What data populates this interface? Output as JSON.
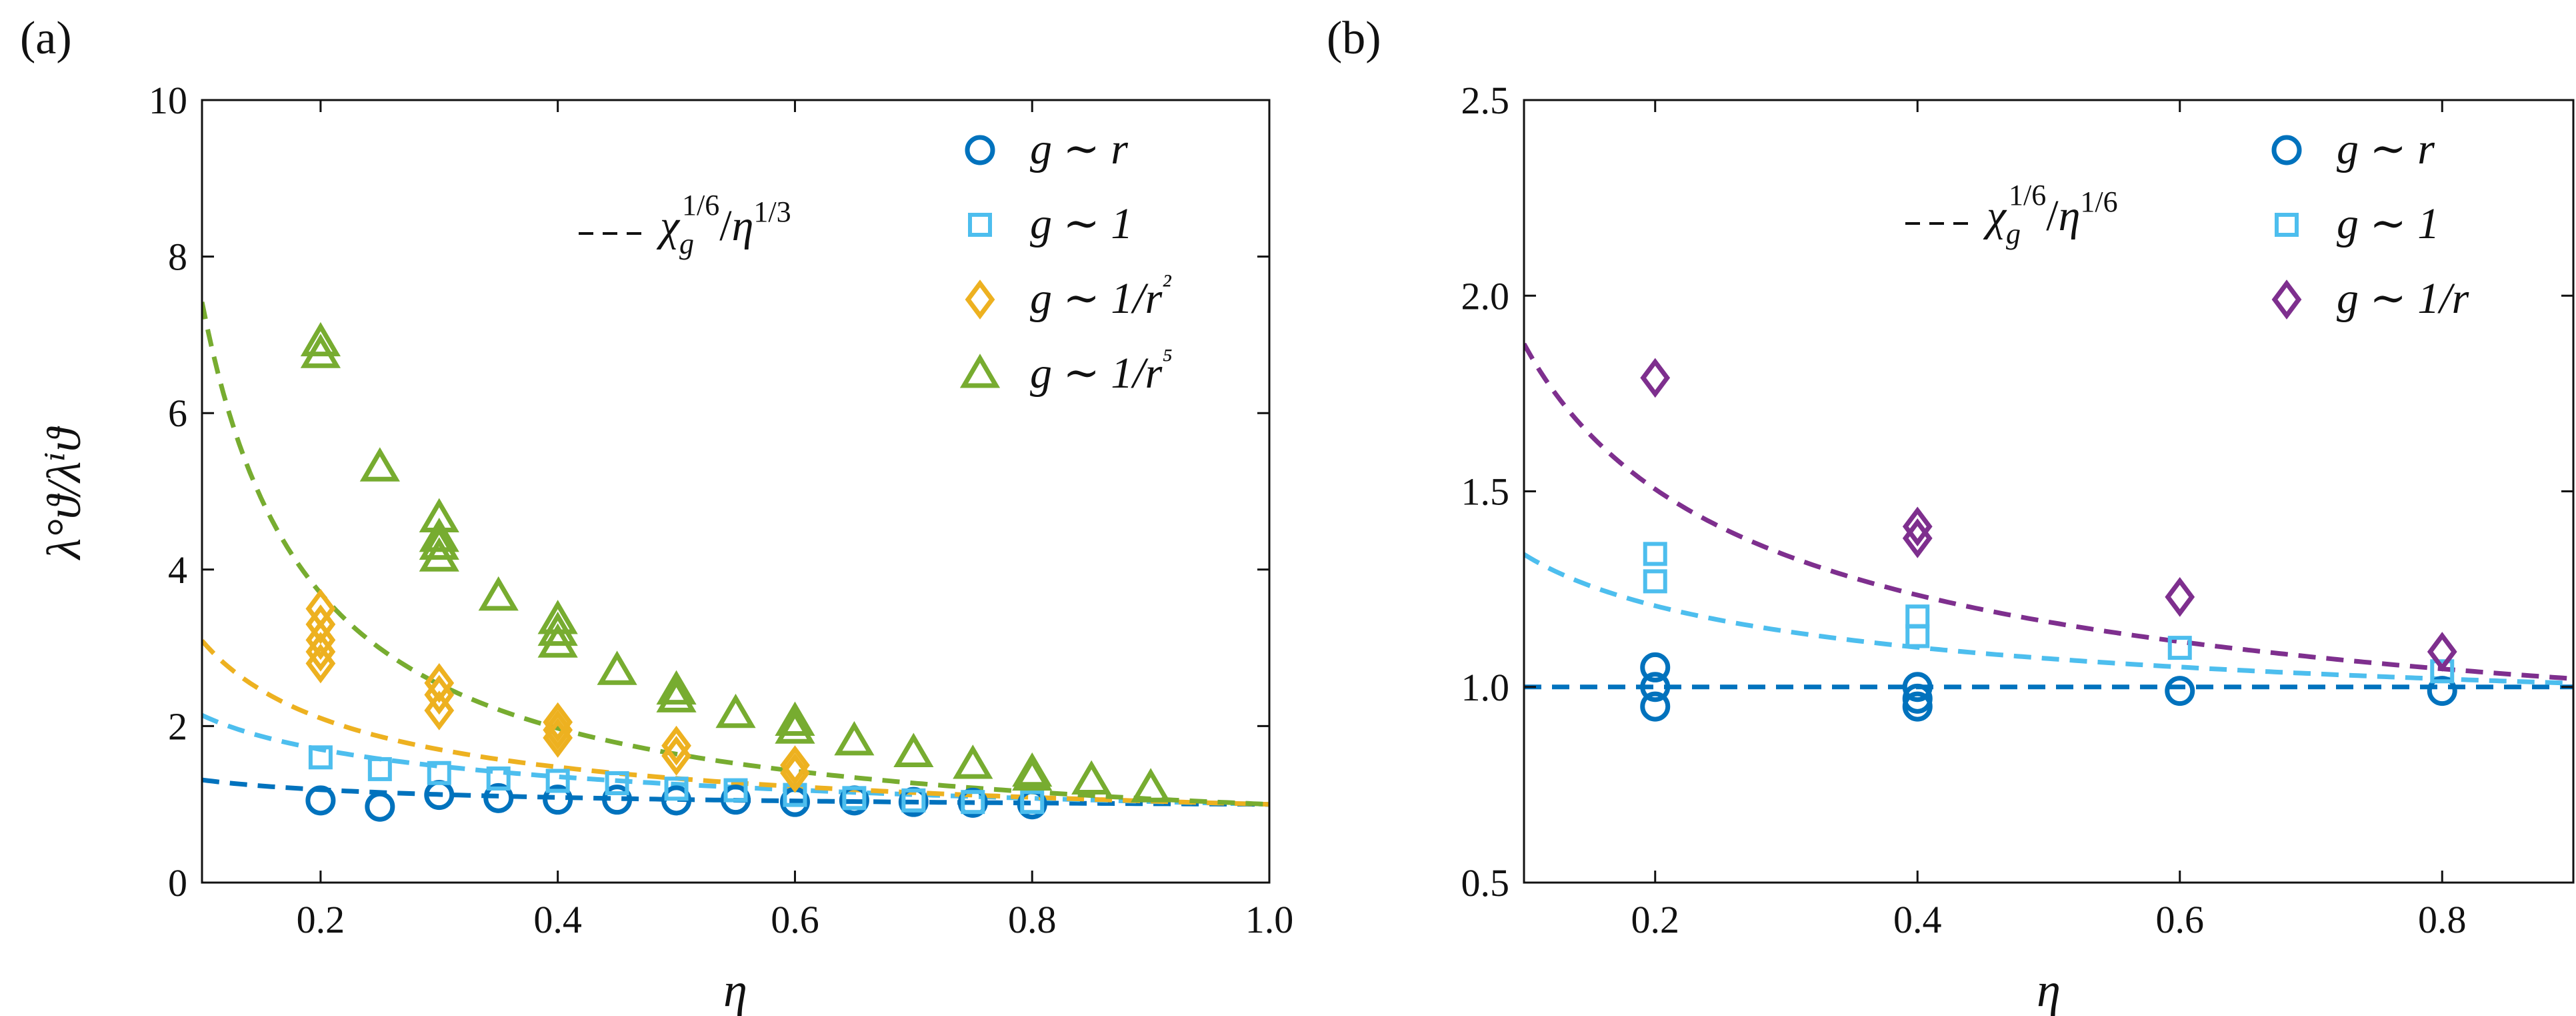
{
  "colors": {
    "g_r": "#0072bd",
    "g_1": "#4dbeee",
    "g_1r2": "#edb120",
    "g_1r5": "#77ac30",
    "g_1r": "#7e2f8e",
    "axis": "#111111"
  },
  "chart_data": [
    {
      "type": "scatter",
      "panel_label": "(a)",
      "xlabel": "η",
      "ylabel": "λ°ϑ/λⁱϑ",
      "xlim": [
        0.1,
        1.0
      ],
      "ylim": [
        0,
        10
      ],
      "xticks": [
        0.2,
        0.4,
        0.6,
        0.8,
        1.0
      ],
      "xtick_labels": [
        "0.2",
        "0.4",
        "0.6",
        "0.8",
        "1.0"
      ],
      "yticks": [
        0,
        2,
        4,
        6,
        8,
        10
      ],
      "ytick_labels": [
        "0",
        "2",
        "4",
        "6",
        "8",
        "10"
      ],
      "grid": false,
      "legend_position": "top-right",
      "fit_legend": "χ_g^{1/6}/η^{1/3}",
      "series": [
        {
          "name": "g ∼ r",
          "marker": "circle",
          "color_key": "g_r",
          "fit_exponent": 0,
          "points": [
            [
              0.2,
              1.05
            ],
            [
              0.25,
              0.97
            ],
            [
              0.3,
              1.12
            ],
            [
              0.35,
              1.08
            ],
            [
              0.4,
              1.06
            ],
            [
              0.45,
              1.06
            ],
            [
              0.5,
              1.05
            ],
            [
              0.55,
              1.06
            ],
            [
              0.6,
              1.03
            ],
            [
              0.65,
              1.05
            ],
            [
              0.7,
              1.03
            ],
            [
              0.75,
              1.02
            ],
            [
              0.8,
              1.0
            ]
          ]
        },
        {
          "name": "g ∼ 1",
          "marker": "square",
          "color_key": "g_1",
          "fit_exponent": 1,
          "points": [
            [
              0.2,
              1.6
            ],
            [
              0.25,
              1.45
            ],
            [
              0.3,
              1.4
            ],
            [
              0.35,
              1.33
            ],
            [
              0.4,
              1.3
            ],
            [
              0.45,
              1.27
            ],
            [
              0.5,
              1.2
            ],
            [
              0.55,
              1.18
            ],
            [
              0.6,
              1.12
            ],
            [
              0.65,
              1.08
            ],
            [
              0.7,
              1.05
            ],
            [
              0.75,
              1.03
            ],
            [
              0.8,
              1.03
            ]
          ]
        },
        {
          "name": "g ∼ 1/r²",
          "marker": "diamond",
          "color_key": "g_1r2",
          "fit_exponent": 3,
          "points": [
            [
              0.2,
              3.5
            ],
            [
              0.2,
              3.3
            ],
            [
              0.2,
              3.1
            ],
            [
              0.2,
              2.95
            ],
            [
              0.2,
              2.8
            ],
            [
              0.3,
              2.55
            ],
            [
              0.3,
              2.4
            ],
            [
              0.3,
              2.2
            ],
            [
              0.4,
              2.05
            ],
            [
              0.4,
              1.95
            ],
            [
              0.4,
              1.85
            ],
            [
              0.5,
              1.75
            ],
            [
              0.5,
              1.62
            ],
            [
              0.6,
              1.5
            ],
            [
              0.6,
              1.4
            ]
          ]
        },
        {
          "name": "g ∼ 1/r⁵",
          "marker": "triangle",
          "color_key": "g_1r5",
          "fit_exponent": 6,
          "points": [
            [
              0.2,
              6.9
            ],
            [
              0.2,
              6.75
            ],
            [
              0.25,
              5.3
            ],
            [
              0.3,
              4.65
            ],
            [
              0.3,
              4.4
            ],
            [
              0.3,
              4.3
            ],
            [
              0.3,
              4.15
            ],
            [
              0.35,
              3.65
            ],
            [
              0.4,
              3.35
            ],
            [
              0.4,
              3.2
            ],
            [
              0.4,
              3.05
            ],
            [
              0.45,
              2.7
            ],
            [
              0.5,
              2.45
            ],
            [
              0.5,
              2.35
            ],
            [
              0.55,
              2.15
            ],
            [
              0.6,
              2.05
            ],
            [
              0.6,
              1.95
            ],
            [
              0.65,
              1.8
            ],
            [
              0.7,
              1.65
            ],
            [
              0.75,
              1.5
            ],
            [
              0.8,
              1.4
            ],
            [
              0.8,
              1.35
            ],
            [
              0.85,
              1.3
            ],
            [
              0.9,
              1.2
            ]
          ]
        }
      ]
    },
    {
      "type": "scatter",
      "panel_label": "(b)",
      "xlabel": "η",
      "ylabel": "",
      "xlim": [
        0.1,
        0.9
      ],
      "ylim": [
        0.5,
        2.5
      ],
      "xticks": [
        0.2,
        0.4,
        0.6,
        0.8
      ],
      "xtick_labels": [
        "0.2",
        "0.4",
        "0.6",
        "0.8"
      ],
      "yticks": [
        0.5,
        1.0,
        1.5,
        2.0,
        2.5
      ],
      "ytick_labels": [
        "0.5",
        "1.0",
        "1.5",
        "2.0",
        "2.5"
      ],
      "grid": false,
      "legend_position": "top-right",
      "fit_legend": "χ_g^{1/6}/η^{1/6}",
      "series": [
        {
          "name": "g ∼ r",
          "marker": "circle",
          "color_key": "g_r",
          "fit_exponent": 0,
          "points": [
            [
              0.2,
              1.05
            ],
            [
              0.2,
              1.0
            ],
            [
              0.2,
              0.95
            ],
            [
              0.4,
              1.0
            ],
            [
              0.4,
              0.97
            ],
            [
              0.4,
              0.95
            ],
            [
              0.6,
              0.99
            ],
            [
              0.8,
              0.99
            ]
          ]
        },
        {
          "name": "g ∼ 1",
          "marker": "square",
          "color_key": "g_1",
          "fit_exponent": 1,
          "points": [
            [
              0.2,
              1.34
            ],
            [
              0.2,
              1.27
            ],
            [
              0.4,
              1.18
            ],
            [
              0.4,
              1.13
            ],
            [
              0.6,
              1.1
            ],
            [
              0.8,
              1.04
            ]
          ]
        },
        {
          "name": "g ∼ 1/r",
          "marker": "diamond",
          "color_key": "g_1r",
          "fit_exponent": 2,
          "points": [
            [
              0.2,
              1.79
            ],
            [
              0.4,
              1.41
            ],
            [
              0.4,
              1.38
            ],
            [
              0.6,
              1.23
            ],
            [
              0.8,
              1.09
            ]
          ]
        }
      ]
    }
  ]
}
